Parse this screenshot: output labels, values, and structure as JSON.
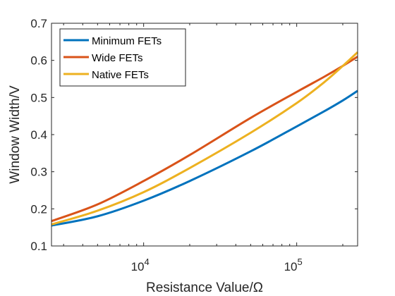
{
  "chart_data": {
    "type": "line",
    "xlabel": "Resistance Value/Ω",
    "ylabel": "Window Width/V",
    "x_scale": "log",
    "xlim": [
      2500,
      250000
    ],
    "ylim": [
      0.1,
      0.7
    ],
    "grid": false,
    "legend_position": "top-left",
    "x_ticks": [
      {
        "value": 10000,
        "base": "10",
        "exp": "4"
      },
      {
        "value": 100000,
        "base": "10",
        "exp": "5"
      }
    ],
    "y_ticks": [
      {
        "value": 0.1,
        "label": "0.1"
      },
      {
        "value": 0.2,
        "label": "0.2"
      },
      {
        "value": 0.3,
        "label": "0.3"
      },
      {
        "value": 0.4,
        "label": "0.4"
      },
      {
        "value": 0.5,
        "label": "0.5"
      },
      {
        "value": 0.6,
        "label": "0.6"
      },
      {
        "value": 0.7,
        "label": "0.7"
      }
    ],
    "x": [
      2500,
      5000,
      10000,
      20000,
      50000,
      100000,
      150000,
      200000,
      250000
    ],
    "series": [
      {
        "name": "Minimum FETs",
        "color": "#0072BD",
        "values": [
          0.155,
          0.18,
          0.222,
          0.275,
          0.355,
          0.422,
          0.462,
          0.492,
          0.518
        ]
      },
      {
        "name": "Wide FETs",
        "color": "#D95319",
        "values": [
          0.167,
          0.212,
          0.275,
          0.345,
          0.445,
          0.515,
          0.555,
          0.585,
          0.61
        ]
      },
      {
        "name": "Native FETs",
        "color": "#EDB120",
        "values": [
          0.158,
          0.195,
          0.245,
          0.31,
          0.405,
          0.485,
          0.54,
          0.585,
          0.622
        ]
      }
    ]
  }
}
